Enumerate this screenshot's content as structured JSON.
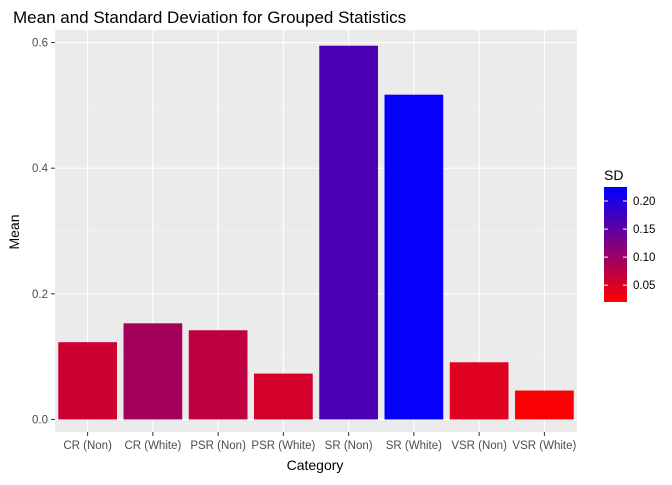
{
  "chart_data": {
    "type": "bar",
    "title": "Mean and Standard Deviation for Grouped Statistics",
    "xlabel": "Category",
    "ylabel": "Mean",
    "ylim": [
      -0.02,
      0.62
    ],
    "yticks": [
      0.0,
      0.2,
      0.4,
      0.6
    ],
    "ytick_labels": [
      "0.0",
      "0.2",
      "0.4",
      "0.6"
    ],
    "categories": [
      "CR (Non)",
      "CR (White)",
      "PSR (Non)",
      "PSR (White)",
      "SR (Non)",
      "SR (White)",
      "VSR (Non)",
      "VSR (White)"
    ],
    "values": [
      0.123,
      0.153,
      0.142,
      0.073,
      0.595,
      0.517,
      0.091,
      0.046
    ],
    "sd": [
      0.06,
      0.094,
      0.072,
      0.055,
      0.164,
      0.222,
      0.045,
      0.024
    ],
    "grid": true,
    "legend": {
      "title": "SD",
      "position": "right",
      "range": [
        0.02,
        0.225
      ],
      "ticks": [
        0.05,
        0.1,
        0.15,
        0.2
      ],
      "tick_labels": [
        "0.05",
        "0.10",
        "0.15",
        "0.20"
      ],
      "color_low": "#ff0000",
      "color_high": "#0000ff"
    },
    "colors": {
      "panel_background": "#ebebeb",
      "grid_major": "#ffffff",
      "grid_minor": "#f5f5f5",
      "axis_text": "#4d4d4d",
      "title_text": "#000000"
    }
  }
}
